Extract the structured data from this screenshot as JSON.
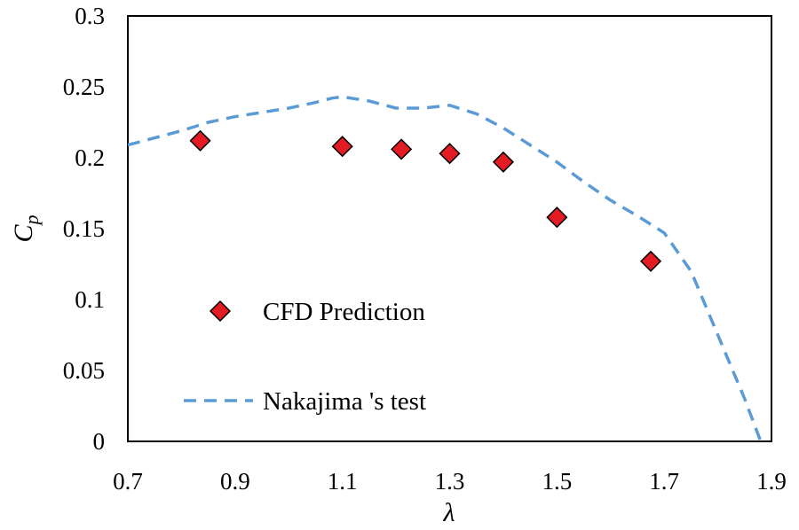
{
  "chart_data": {
    "type": "scatter",
    "title": "",
    "xlabel": "λ",
    "ylabel": {
      "main": "C",
      "sub": "p"
    },
    "xlim": [
      0.7,
      1.9
    ],
    "ylim": [
      0,
      0.3
    ],
    "x_ticks": [
      0.7,
      0.9,
      1.1,
      1.3,
      1.5,
      1.7,
      1.9
    ],
    "x_tick_labels": [
      "0.7",
      "0.9",
      "1.1",
      "1.3",
      "1.5",
      "1.7",
      "1.9"
    ],
    "y_ticks": [
      0,
      0.05,
      0.1,
      0.15,
      0.2,
      0.25,
      0.3
    ],
    "y_tick_labels": [
      "0",
      "0.05",
      "0.1",
      "0.15",
      "0.2",
      "0.25",
      "0.3"
    ],
    "grid": false,
    "legend_position": "inside-left",
    "series": [
      {
        "name": "CFD Prediction",
        "style": "marker-diamond",
        "color": "#e31b23",
        "edge_color": "#000000",
        "x": [
          0.835,
          1.1,
          1.21,
          1.3,
          1.4,
          1.5,
          1.675
        ],
        "y": [
          0.212,
          0.208,
          0.206,
          0.203,
          0.197,
          0.158,
          0.127
        ]
      },
      {
        "name": "Nakajima 's test",
        "style": "dashed-line",
        "color": "#5b9bd5",
        "x": [
          0.7,
          0.75,
          0.8,
          0.85,
          0.9,
          0.95,
          1.0,
          1.05,
          1.08,
          1.1,
          1.15,
          1.2,
          1.25,
          1.3,
          1.35,
          1.4,
          1.45,
          1.5,
          1.55,
          1.6,
          1.65,
          1.7,
          1.75,
          1.8,
          1.85,
          1.88
        ],
        "y": [
          0.209,
          0.214,
          0.219,
          0.225,
          0.229,
          0.232,
          0.235,
          0.239,
          0.242,
          0.243,
          0.24,
          0.235,
          0.235,
          0.237,
          0.231,
          0.221,
          0.209,
          0.197,
          0.183,
          0.17,
          0.159,
          0.147,
          0.12,
          0.075,
          0.03,
          0.0
        ]
      }
    ]
  }
}
